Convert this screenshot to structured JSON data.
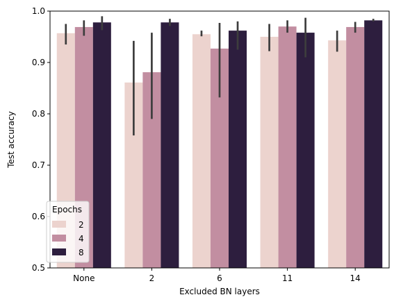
{
  "chart_data": {
    "type": "bar",
    "xlabel": "Excluded BN layers",
    "ylabel": "Test accuracy",
    "categories": [
      "None",
      "2",
      "6",
      "11",
      "14"
    ],
    "ylim": [
      0.5,
      1.0
    ],
    "yticks": [
      "0.5",
      "0.6",
      "0.7",
      "0.8",
      "0.9",
      "1.0"
    ],
    "grid": false,
    "legend": {
      "title": "Epochs",
      "position": "lower-left"
    },
    "series": [
      {
        "name": "2",
        "color": "#ecd3ce",
        "values": [
          0.957,
          0.861,
          0.955,
          0.95,
          0.943
        ],
        "ci": [
          [
            0.935,
            0.975
          ],
          [
            0.758,
            0.942
          ],
          [
            0.951,
            0.962
          ],
          [
            0.922,
            0.975
          ],
          [
            0.921,
            0.962
          ]
        ]
      },
      {
        "name": "4",
        "color": "#c28ea1",
        "values": [
          0.969,
          0.881,
          0.927,
          0.97,
          0.969
        ],
        "ci": [
          [
            0.952,
            0.982
          ],
          [
            0.79,
            0.958
          ],
          [
            0.832,
            0.977
          ],
          [
            0.958,
            0.982
          ],
          [
            0.958,
            0.979
          ]
        ]
      },
      {
        "name": "8",
        "color": "#2d1e3e",
        "values": [
          0.978,
          0.978,
          0.962,
          0.958,
          0.982
        ],
        "ci": [
          [
            0.963,
            0.99
          ],
          [
            0.971,
            0.985
          ],
          [
            0.925,
            0.98
          ],
          [
            0.91,
            0.987
          ],
          [
            0.98,
            0.985
          ]
        ]
      }
    ]
  }
}
